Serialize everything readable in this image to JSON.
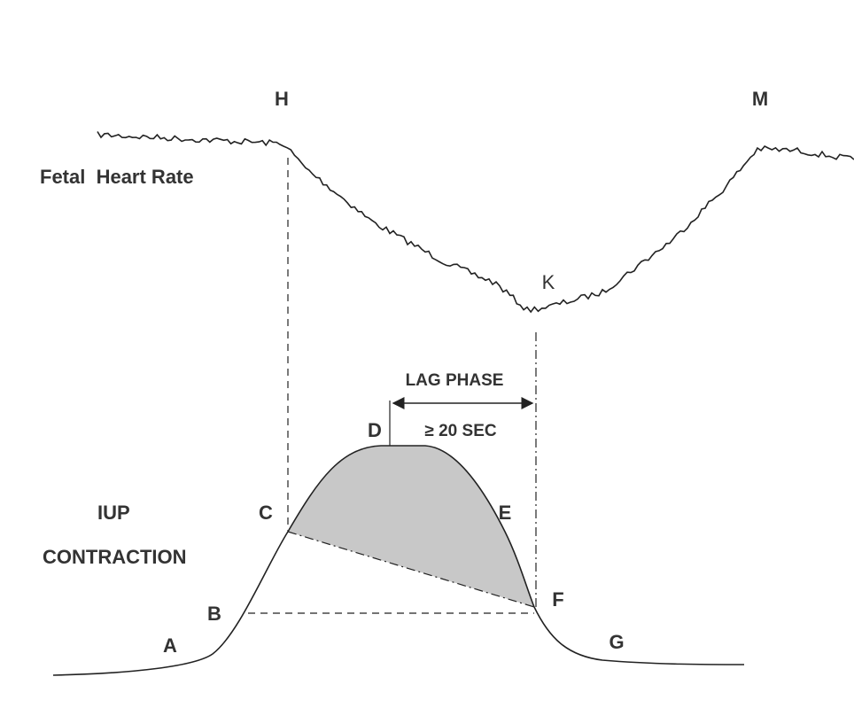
{
  "labels": {
    "fhr": "Fetal  Heart Rate",
    "iup": "IUP",
    "contraction": "CONTRACTION",
    "lag_phase": "LAG PHASE",
    "lag_duration": "≥ 20 SEC"
  },
  "points": [
    "A",
    "B",
    "C",
    "D",
    "E",
    "F",
    "G",
    "H",
    "K",
    "M"
  ]
}
